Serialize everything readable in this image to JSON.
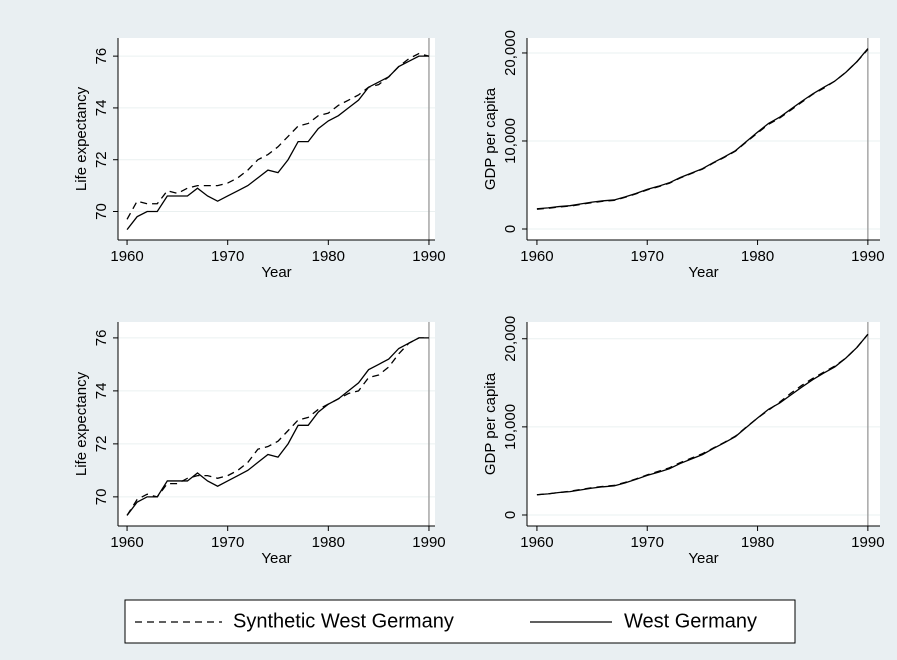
{
  "chart_data": [
    {
      "type": "line",
      "ylabel": "Life expectancy",
      "xlabel": "Year",
      "x": [
        1960,
        1961,
        1962,
        1963,
        1964,
        1965,
        1966,
        1967,
        1968,
        1969,
        1970,
        1971,
        1972,
        1973,
        1974,
        1975,
        1976,
        1977,
        1978,
        1979,
        1980,
        1981,
        1982,
        1983,
        1984,
        1985,
        1986,
        1987,
        1988,
        1989,
        1990
      ],
      "xlim": [
        1959.1,
        1990.6
      ],
      "xticks": [
        1960,
        1970,
        1980,
        1990
      ],
      "ylim": [
        68.9,
        76.7
      ],
      "yticks": [
        70,
        72,
        74,
        76
      ],
      "grid": true,
      "vline": 1990,
      "series": [
        {
          "name": "Synthetic West Germany",
          "color": "#000000",
          "dash": "dashed",
          "values": [
            69.7,
            70.4,
            70.3,
            70.3,
            70.8,
            70.7,
            70.9,
            71.0,
            71.0,
            71.0,
            71.1,
            71.3,
            71.6,
            72.0,
            72.2,
            72.5,
            72.9,
            73.3,
            73.4,
            73.7,
            73.8,
            74.1,
            74.3,
            74.5,
            74.8,
            74.9,
            75.2,
            75.6,
            75.9,
            76.1,
            76.0
          ]
        },
        {
          "name": "West Germany",
          "color": "#000000",
          "dash": "solid",
          "values": [
            69.3,
            69.8,
            70.0,
            70.0,
            70.6,
            70.6,
            70.6,
            70.9,
            70.6,
            70.4,
            70.6,
            70.8,
            71.0,
            71.3,
            71.6,
            71.5,
            72.0,
            72.7,
            72.7,
            73.2,
            73.5,
            73.7,
            74.0,
            74.3,
            74.8,
            75.0,
            75.2,
            75.6,
            75.8,
            76.0,
            76.0
          ]
        }
      ]
    },
    {
      "type": "line",
      "ylabel": "GDP per capita",
      "xlabel": "Year",
      "x": [
        1960,
        1961,
        1962,
        1963,
        1964,
        1965,
        1966,
        1967,
        1968,
        1969,
        1970,
        1971,
        1972,
        1973,
        1974,
        1975,
        1976,
        1977,
        1978,
        1979,
        1980,
        1981,
        1982,
        1983,
        1984,
        1985,
        1986,
        1987,
        1988,
        1989,
        1990
      ],
      "xlim": [
        1959.1,
        1991.1
      ],
      "xticks": [
        1960,
        1970,
        1980,
        1990
      ],
      "ylim": [
        -1250,
        21700
      ],
      "yticks": [
        0,
        {
          "value": 10000,
          "label": "10,000"
        },
        {
          "value": 20000,
          "label": "20,000"
        }
      ],
      "grid": true,
      "vline": 1990,
      "series": [
        {
          "color": "#000000",
          "dash": "dashed",
          "values": [
            2250,
            2350,
            2500,
            2600,
            2800,
            3000,
            3150,
            3250,
            3600,
            4000,
            4450,
            4800,
            5200,
            5800,
            6300,
            6800,
            7500,
            8150,
            8850,
            9900,
            10900,
            11900,
            12600,
            13500,
            14400,
            15300,
            16000,
            16800,
            17800,
            19000,
            20400
          ]
        },
        {
          "color": "#000000",
          "dash": "solid",
          "values": [
            2300,
            2400,
            2550,
            2650,
            2850,
            3050,
            3200,
            3300,
            3650,
            4050,
            4500,
            4850,
            5250,
            5850,
            6350,
            6850,
            7550,
            8200,
            8900,
            9950,
            11000,
            12000,
            12700,
            13600,
            14500,
            15350,
            16100,
            16800,
            17800,
            19000,
            20500
          ]
        }
      ]
    },
    {
      "type": "line",
      "ylabel": "Life expectancy",
      "xlabel": "Year",
      "x": [
        1960,
        1961,
        1962,
        1963,
        1964,
        1965,
        1966,
        1967,
        1968,
        1969,
        1970,
        1971,
        1972,
        1973,
        1974,
        1975,
        1976,
        1977,
        1978,
        1979,
        1980,
        1981,
        1982,
        1983,
        1984,
        1985,
        1986,
        1987,
        1988,
        1989,
        1990
      ],
      "xlim": [
        1959.1,
        1990.6
      ],
      "xticks": [
        1960,
        1970,
        1980,
        1990
      ],
      "ylim": [
        68.9,
        76.6
      ],
      "yticks": [
        70,
        72,
        74,
        76
      ],
      "grid": true,
      "vline": 1990,
      "series": [
        {
          "color": "#000000",
          "dash": "dashed",
          "values": [
            69.3,
            69.9,
            70.1,
            70.0,
            70.5,
            70.5,
            70.7,
            70.8,
            70.8,
            70.7,
            70.8,
            71.0,
            71.3,
            71.8,
            71.9,
            72.1,
            72.5,
            72.9,
            73.0,
            73.3,
            73.5,
            73.7,
            73.9,
            74.0,
            74.5,
            74.6,
            74.9,
            75.4,
            75.8,
            76.0,
            76.0
          ]
        },
        {
          "color": "#000000",
          "dash": "solid",
          "values": [
            69.3,
            69.8,
            70.0,
            70.0,
            70.6,
            70.6,
            70.6,
            70.9,
            70.6,
            70.4,
            70.6,
            70.8,
            71.0,
            71.3,
            71.6,
            71.5,
            72.0,
            72.7,
            72.7,
            73.2,
            73.5,
            73.7,
            74.0,
            74.3,
            74.8,
            75.0,
            75.2,
            75.6,
            75.8,
            76.0,
            76.0
          ]
        }
      ]
    },
    {
      "type": "line",
      "ylabel": "GDP per capita",
      "xlabel": "Year",
      "x": [
        1960,
        1961,
        1962,
        1963,
        1964,
        1965,
        1966,
        1967,
        1968,
        1969,
        1970,
        1971,
        1972,
        1973,
        1974,
        1975,
        1976,
        1977,
        1978,
        1979,
        1980,
        1981,
        1982,
        1983,
        1984,
        1985,
        1986,
        1987,
        1988,
        1989,
        1990
      ],
      "xlim": [
        1959.1,
        1991.1
      ],
      "xticks": [
        1960,
        1970,
        1980,
        1990
      ],
      "ylim": [
        -1250,
        21900
      ],
      "yticks": [
        0,
        {
          "value": 10000,
          "label": "10,000"
        },
        {
          "value": 20000,
          "label": "20,000"
        }
      ],
      "grid": true,
      "vline": 1990,
      "series": [
        {
          "color": "#000000",
          "dash": "dashed",
          "values": [
            2300,
            2400,
            2550,
            2700,
            2900,
            3100,
            3250,
            3350,
            3700,
            4100,
            4550,
            4950,
            5350,
            5950,
            6450,
            6950,
            7600,
            8250,
            8950,
            10000,
            11000,
            11900,
            12800,
            13800,
            14700,
            15500,
            16200,
            16900,
            17800,
            19000,
            20500
          ]
        },
        {
          "color": "#000000",
          "dash": "solid",
          "values": [
            2300,
            2400,
            2550,
            2650,
            2850,
            3050,
            3200,
            3300,
            3650,
            4050,
            4500,
            4850,
            5250,
            5850,
            6350,
            6850,
            7550,
            8200,
            8900,
            9950,
            11000,
            12000,
            12700,
            13600,
            14500,
            15350,
            16100,
            16800,
            17800,
            19000,
            20500
          ]
        }
      ]
    }
  ]
}
